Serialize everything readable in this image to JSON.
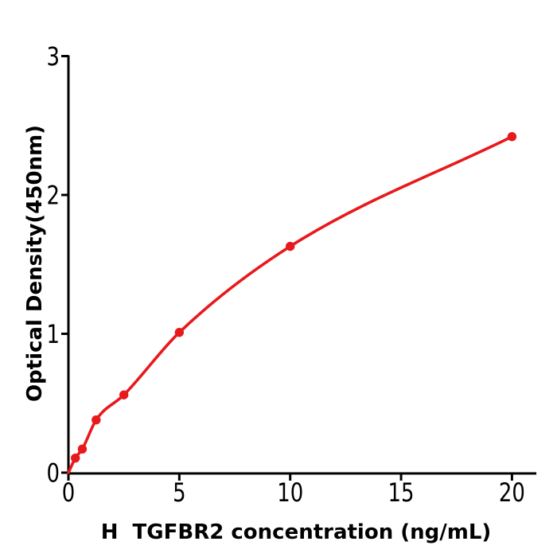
{
  "figure": {
    "background": "#ffffff",
    "axis_color": "#000000",
    "accent_red": "#e8191c"
  },
  "chart_data": {
    "type": "scatter",
    "title": "",
    "xlabel": "H  TGFBR2 concentration (ng/mL)",
    "ylabel": "Optical Density(450nm)",
    "x": [
      0.313,
      0.625,
      1.25,
      2.5,
      5,
      10,
      20
    ],
    "y": [
      0.105,
      0.17,
      0.38,
      0.56,
      1.01,
      1.63,
      2.42
    ],
    "curve": {
      "style": "smooth-fit",
      "starts_at_origin": true,
      "color": "#e8191c",
      "width": 3.6
    },
    "marker": {
      "shape": "circle",
      "color": "#e8191c",
      "radius": 5.7
    },
    "xticks": [
      0,
      5,
      10,
      15,
      20
    ],
    "yticks": [
      0,
      1,
      2,
      3
    ],
    "xlim": [
      0,
      21.1
    ],
    "ylim": [
      0,
      3
    ],
    "grid": false,
    "legend": "none"
  }
}
